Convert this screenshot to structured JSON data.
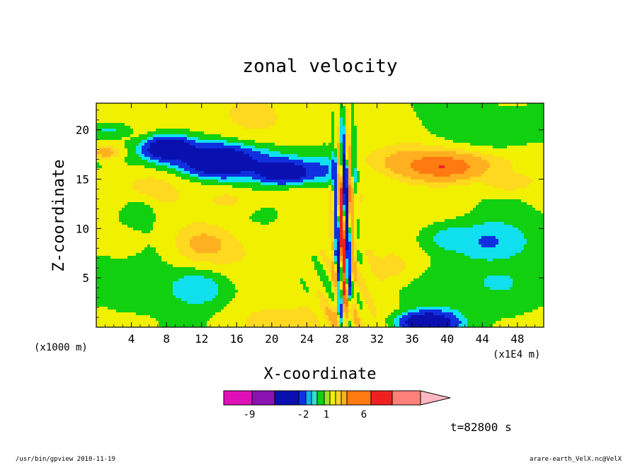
{
  "chart_data": {
    "type": "heatmap",
    "title": "zonal velocity",
    "xlabel": "X-coordinate",
    "ylabel": "Z-coordinate",
    "x_scale_note": "(x1E4 m)",
    "y_scale_note": "(x1000 m)",
    "time_label": "t=82800 s",
    "x_ticks": [
      "4",
      "8",
      "12",
      "16",
      "20",
      "24",
      "28",
      "32",
      "36",
      "40",
      "44",
      "48"
    ],
    "x_tick_values": [
      4,
      8,
      12,
      16,
      20,
      24,
      28,
      32,
      36,
      40,
      44,
      48
    ],
    "y_ticks": [
      "5",
      "10",
      "15",
      "20"
    ],
    "y_tick_values": [
      5,
      10,
      15,
      20
    ],
    "xlim": [
      0,
      51
    ],
    "ylim": [
      0,
      22.7
    ],
    "colorbar_labels": [
      "-9",
      "-2",
      "1",
      "6"
    ],
    "colorbar_label_values": [
      -9,
      -2,
      1,
      6
    ],
    "colorbar_colors": [
      "#e010b8",
      "#8a12b0",
      "#0a10b0",
      "#1030e0",
      "#10b0f0",
      "#30e0d0",
      "#10d010",
      "#a0e020",
      "#f0f000",
      "#ffd820",
      "#ffb020",
      "#ff7a10",
      "#f02020",
      "#ff8078",
      "#ffb8c0"
    ],
    "field_levels": [
      {
        "level": -9,
        "color": "#0a10b0"
      },
      {
        "level": -4,
        "color": "#1030e0"
      },
      {
        "level": -2,
        "color": "#10e0f0"
      },
      {
        "level": -1,
        "color": "#10d010"
      },
      {
        "level": 0,
        "color": "#f0f000"
      },
      {
        "level": 1,
        "color": "#ffd820"
      },
      {
        "level": 2,
        "color": "#ffb020"
      },
      {
        "level": 4,
        "color": "#ff7a10"
      }
    ]
  },
  "footer": {
    "left": "/usr/bin/gpview   2010-11-19",
    "right": "arare-earth_VelX.nc@VelX"
  }
}
